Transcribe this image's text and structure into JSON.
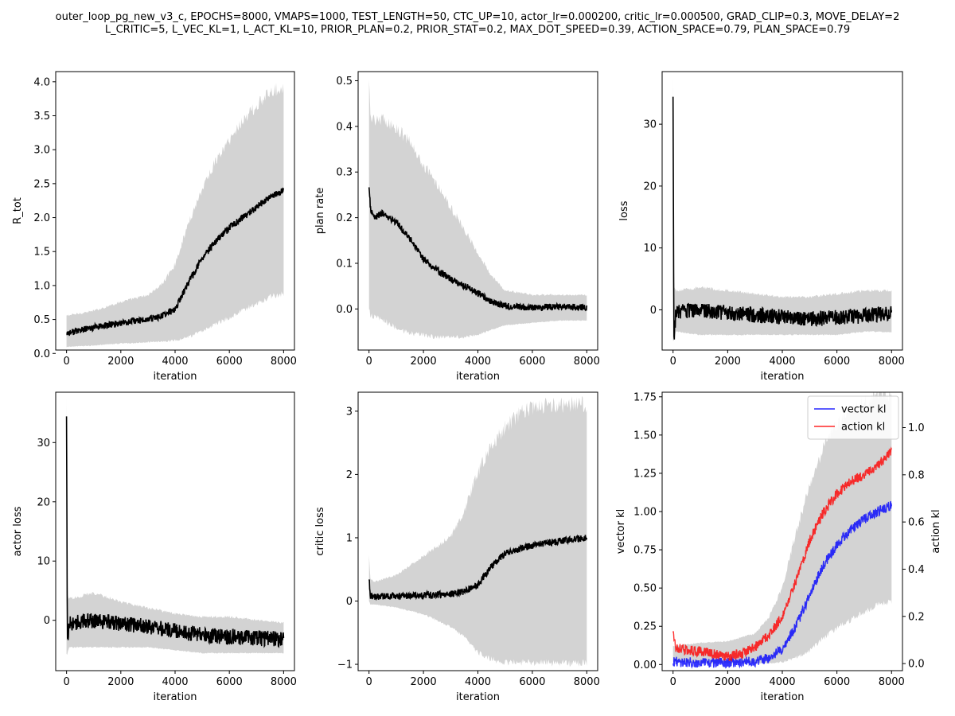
{
  "suptitle": {
    "line1": "outer_loop_pg_new_v3_c, EPOCHS=8000, VMAPS=1000, TEST_LENGTH=50, CTC_UP=10, actor_lr=0.000200, critic_lr=0.000500, GRAD_CLIP=0.3, MOVE_DELAY=2",
    "line2": "L_CRITIC=5, L_VEC_KL=1, L_ACT_KL=10, PRIOR_PLAN=0.2, PRIOR_STAT=0.2, MAX_DOT_SPEED=0.39, ACTION_SPACE=0.79, PLAN_SPACE=0.79"
  },
  "colors": {
    "mean": "#000000",
    "band": "#d3d3d3",
    "vector": "#0000ff",
    "action": "#ff0000"
  },
  "chart_data": [
    {
      "type": "line",
      "xlabel": "iteration",
      "ylabel": "R_tot",
      "xlim": [
        -400,
        8400
      ],
      "ylim": [
        0.05,
        4.15
      ],
      "xticks": [
        0,
        2000,
        4000,
        6000,
        8000
      ],
      "yticks": [
        0.0,
        0.5,
        1.0,
        1.5,
        2.0,
        2.5,
        3.0,
        3.5,
        4.0
      ],
      "ytick_decimals": 1,
      "x": [
        0,
        1000,
        2000,
        3000,
        3500,
        4000,
        4500,
        5000,
        5500,
        6000,
        6500,
        7000,
        7500,
        8000
      ],
      "mean": [
        0.3,
        0.38,
        0.45,
        0.5,
        0.55,
        0.65,
        1.05,
        1.4,
        1.65,
        1.85,
        2.0,
        2.15,
        2.3,
        2.4
      ],
      "upper": [
        0.55,
        0.62,
        0.75,
        0.85,
        1.0,
        1.3,
        1.9,
        2.4,
        2.8,
        3.1,
        3.4,
        3.6,
        3.8,
        3.9
      ],
      "lower": [
        0.1,
        0.12,
        0.15,
        0.17,
        0.18,
        0.2,
        0.25,
        0.35,
        0.45,
        0.55,
        0.65,
        0.75,
        0.85,
        0.9
      ]
    },
    {
      "type": "line",
      "xlabel": "iteration",
      "ylabel": "plan rate",
      "xlim": [
        -400,
        8400
      ],
      "ylim": [
        -0.09,
        0.52
      ],
      "xticks": [
        0,
        2000,
        4000,
        6000,
        8000
      ],
      "yticks": [
        0.0,
        0.1,
        0.2,
        0.3,
        0.4,
        0.5
      ],
      "ytick_decimals": 1,
      "x": [
        0,
        50,
        200,
        500,
        1000,
        1500,
        2000,
        2500,
        3000,
        3500,
        4000,
        4500,
        5000,
        6000,
        7000,
        8000
      ],
      "mean": [
        0.27,
        0.22,
        0.2,
        0.21,
        0.19,
        0.155,
        0.11,
        0.085,
        0.065,
        0.05,
        0.035,
        0.015,
        0.006,
        0.004,
        0.004,
        0.004
      ],
      "upper": [
        0.49,
        0.42,
        0.41,
        0.41,
        0.39,
        0.36,
        0.31,
        0.27,
        0.22,
        0.17,
        0.12,
        0.07,
        0.04,
        0.03,
        0.03,
        0.03
      ],
      "lower": [
        0.0,
        -0.01,
        -0.015,
        -0.02,
        -0.04,
        -0.05,
        -0.055,
        -0.06,
        -0.06,
        -0.06,
        -0.055,
        -0.045,
        -0.035,
        -0.03,
        -0.025,
        -0.025
      ]
    },
    {
      "type": "line",
      "xlabel": "iteration",
      "ylabel": "loss",
      "xlim": [
        -400,
        8400
      ],
      "ylim": [
        -6.5,
        38.5
      ],
      "xticks": [
        0,
        2000,
        4000,
        6000,
        8000
      ],
      "yticks": [
        0,
        10,
        20,
        30
      ],
      "ytick_decimals": 0,
      "x": [
        0,
        30,
        100,
        1000,
        2000,
        3000,
        4000,
        5000,
        6000,
        7000,
        8000
      ],
      "mean": [
        35.0,
        -4.5,
        -0.5,
        0.0,
        -0.5,
        -0.8,
        -1.2,
        -1.5,
        -1.2,
        -1.0,
        -0.5
      ],
      "upper": [
        36.5,
        4.0,
        3.0,
        3.5,
        3.0,
        2.5,
        2.0,
        2.0,
        2.5,
        3.0,
        3.0
      ],
      "lower": [
        -4.5,
        -5.0,
        -3.5,
        -4.0,
        -4.0,
        -4.0,
        -4.0,
        -4.0,
        -4.0,
        -3.5,
        -3.5
      ]
    },
    {
      "type": "line",
      "xlabel": "iteration",
      "ylabel": "actor loss",
      "xlim": [
        -400,
        8400
      ],
      "ylim": [
        -8.5,
        38.5
      ],
      "xticks": [
        0,
        2000,
        4000,
        6000,
        8000
      ],
      "yticks": [
        0,
        10,
        20,
        30
      ],
      "ytick_decimals": 0,
      "x": [
        0,
        30,
        100,
        1000,
        2000,
        3000,
        4000,
        5000,
        6000,
        7000,
        8000
      ],
      "mean": [
        35.0,
        -4.5,
        -0.5,
        0.0,
        -0.5,
        -1.0,
        -1.8,
        -2.5,
        -2.8,
        -3.0,
        -3.2
      ],
      "upper": [
        36.5,
        4.0,
        3.5,
        4.5,
        3.0,
        2.0,
        1.0,
        0.5,
        0.5,
        0.0,
        -0.5
      ],
      "lower": [
        -6.0,
        -5.5,
        -4.5,
        -4.5,
        -4.5,
        -4.5,
        -5.0,
        -5.5,
        -5.5,
        -5.5,
        -5.5
      ]
    },
    {
      "type": "line",
      "xlabel": "iteration",
      "ylabel": "critic loss",
      "xlim": [
        -400,
        8400
      ],
      "ylim": [
        -1.1,
        3.3
      ],
      "xticks": [
        0,
        2000,
        4000,
        6000,
        8000
      ],
      "yticks": [
        -1,
        0,
        1,
        2,
        3
      ],
      "ytick_decimals": 0,
      "x": [
        0,
        50,
        200,
        1000,
        2000,
        3000,
        3500,
        4000,
        4500,
        5000,
        5500,
        6000,
        7000,
        8000
      ],
      "mean": [
        0.35,
        0.08,
        0.07,
        0.08,
        0.09,
        0.11,
        0.15,
        0.25,
        0.55,
        0.75,
        0.82,
        0.88,
        0.95,
        1.0
      ],
      "upper": [
        0.7,
        0.35,
        0.3,
        0.4,
        0.7,
        1.0,
        1.4,
        2.0,
        2.4,
        2.7,
        2.9,
        3.0,
        3.05,
        3.05
      ],
      "lower": [
        0.0,
        -0.05,
        -0.05,
        -0.1,
        -0.2,
        -0.4,
        -0.55,
        -0.8,
        -0.9,
        -0.95,
        -0.95,
        -0.95,
        -0.95,
        -0.95
      ]
    },
    {
      "type": "line",
      "xlabel": "iteration",
      "ylabel": "vector kl",
      "ylabel_right": "action kl",
      "xlim": [
        -400,
        8400
      ],
      "ylim": [
        -0.04,
        1.78
      ],
      "ylim_right": [
        -0.03,
        1.15
      ],
      "xticks": [
        0,
        2000,
        4000,
        6000,
        8000
      ],
      "yticks": [
        0.0,
        0.25,
        0.5,
        0.75,
        1.0,
        1.25,
        1.5,
        1.75
      ],
      "ytick_decimals": 2,
      "yticks_right": [
        0.0,
        0.2,
        0.4,
        0.6,
        0.8,
        1.0
      ],
      "ytick_right_decimals": 1,
      "legend_position": "top-right",
      "legend": [
        "vector kl",
        "action kl"
      ],
      "band": {
        "x": [
          0,
          1000,
          2000,
          3000,
          3500,
          4000,
          4500,
          5000,
          5500,
          6000,
          6500,
          7000,
          7500,
          8000
        ],
        "upper": [
          0.12,
          0.14,
          0.15,
          0.2,
          0.3,
          0.5,
          0.85,
          1.15,
          1.4,
          1.55,
          1.65,
          1.7,
          1.75,
          1.75
        ],
        "lower": [
          0.02,
          0.01,
          0.01,
          0.01,
          0.01,
          0.02,
          0.05,
          0.1,
          0.18,
          0.25,
          0.3,
          0.35,
          0.4,
          0.42
        ]
      },
      "series": [
        {
          "name": "vector kl",
          "axis": "left",
          "x": [
            0,
            500,
            1000,
            2000,
            3000,
            3500,
            4000,
            4500,
            5000,
            5500,
            6000,
            6500,
            7000,
            7500,
            8000
          ],
          "values": [
            0.02,
            0.015,
            0.012,
            0.012,
            0.02,
            0.04,
            0.1,
            0.25,
            0.45,
            0.65,
            0.78,
            0.88,
            0.95,
            1.0,
            1.04
          ]
        },
        {
          "name": "action kl",
          "axis": "right",
          "x": [
            0,
            100,
            400,
            1000,
            2000,
            2500,
            3000,
            3500,
            4000,
            4500,
            5000,
            5500,
            6000,
            6500,
            7000,
            7500,
            8000
          ],
          "values": [
            0.14,
            0.07,
            0.06,
            0.05,
            0.03,
            0.04,
            0.07,
            0.12,
            0.2,
            0.35,
            0.52,
            0.64,
            0.72,
            0.77,
            0.8,
            0.84,
            0.9
          ]
        }
      ]
    }
  ]
}
